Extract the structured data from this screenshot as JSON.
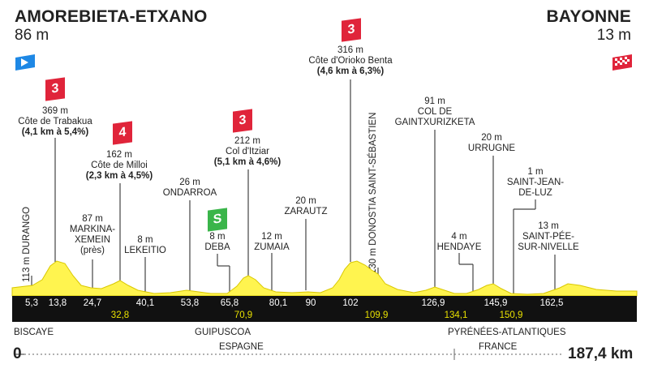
{
  "start": {
    "name": "AMOREBIETA-ETXANO",
    "altitude": "86 m"
  },
  "finish": {
    "name": "BAYONNE",
    "altitude": "13 m"
  },
  "climbs": [
    {
      "category": "3",
      "altitude": "369 m",
      "name": "Côte de Trabakua",
      "detail": "(4,1 km à 5,4%)"
    },
    {
      "category": "4",
      "altitude": "162 m",
      "name": "Côte de Milloi",
      "detail": "(2,3 km à 4,5%)"
    },
    {
      "category": "3",
      "altitude": "212 m",
      "name": "Col d'Itziar",
      "detail": "(5,1 km à 4,6%)"
    },
    {
      "category": "3",
      "altitude": "316 m",
      "name": "Côte d'Orioko Benta",
      "detail": "(4,6 km à 6,3%)"
    }
  ],
  "sprint": {
    "symbol": "S"
  },
  "places": {
    "durango": "113 m DURANGO",
    "markina_alt": "87 m",
    "markina_name1": "MARKINA-",
    "markina_name2": "XEMEIN",
    "markina_name3": "(près)",
    "lekeitio_alt": "8 m",
    "lekeitio_name": "LEKEITIO",
    "ondarroa_alt": "26 m",
    "ondarroa_name": "ONDARROA",
    "deba_alt": "8 m",
    "deba_name": "DEBA",
    "zumaia_alt": "12 m",
    "zumaia_name": "ZUMAIA",
    "zarautz_alt": "20 m",
    "zarautz_name": "ZARAUTZ",
    "donostia": "130 m DONOSTIA SAINT-SÉBASTIEN",
    "gaintz_alt": "91 m",
    "gaintz_name1": "COL DE",
    "gaintz_name2": "GAINTXURIZKETA",
    "hendaye_alt": "4 m",
    "hendaye_name": "HENDAYE",
    "urrugne_alt": "20 m",
    "urrugne_name": "URRUGNE",
    "sjdl_alt": "1 m",
    "sjdl_name1": "SAINT-JEAN-",
    "sjdl_name2": "DE-LUZ",
    "spn_alt": "13 m",
    "spn_name1": "SAINT-PÉE-",
    "spn_name2": "SUR-NIVELLE"
  },
  "km_top": [
    "5,3",
    "13,8",
    "24,7",
    "40,1",
    "53,8",
    "65,8",
    "80,1",
    "90",
    "102",
    "126,9",
    "145,9",
    "162,5"
  ],
  "km_bottom": [
    "32,8",
    "70,9",
    "109,9",
    "134,1",
    "150,9"
  ],
  "regions": {
    "biscaye": "BISCAYE",
    "guipuscoa": "GUIPUSCOA",
    "pyrenees": "PYRÉNÉES-ATLANTIQUES"
  },
  "countries": {
    "espagne": "ESPAGNE",
    "france": "FRANCE"
  },
  "distance": {
    "start": "0",
    "end": "187,4 km"
  },
  "colors": {
    "profile": "#fff44f",
    "profile_edge": "#d9c800",
    "band": "#111111",
    "climb_badge": "#e0243a",
    "sprint_badge": "#3ab54a",
    "start_flag": "#1e88e5",
    "finish_flag": "#e0243a"
  }
}
